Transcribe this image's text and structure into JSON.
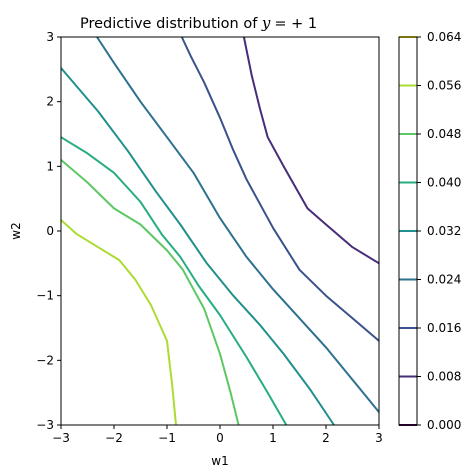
{
  "chart_data": {
    "type": "contour",
    "title": {
      "text": "Predictive distribution of",
      "math_var": "y",
      "math_rest": "= +1"
    },
    "xlabel": "w1",
    "ylabel": "w2",
    "xlim": [
      -3,
      3
    ],
    "ylim": [
      -3,
      3
    ],
    "xticks": [
      -3,
      -2,
      -1,
      0,
      1,
      2,
      3
    ],
    "yticks": [
      -3,
      -2,
      -1,
      0,
      1,
      2,
      3
    ],
    "xtick_labels": [
      "−3",
      "−2",
      "−1",
      "0",
      "1",
      "2",
      "3"
    ],
    "ytick_labels": [
      "−3",
      "−2",
      "−1",
      "0",
      "1",
      "2",
      "3"
    ],
    "grid": false,
    "colorbar": {
      "min": 0.0,
      "max": 0.064,
      "ticks": [
        0.0,
        0.008,
        0.016,
        0.024,
        0.032,
        0.04,
        0.048,
        0.056,
        0.064
      ],
      "tick_labels": [
        "0.000",
        "0.008",
        "0.016",
        "0.024",
        "0.032",
        "0.040",
        "0.048",
        "0.056",
        "0.064"
      ],
      "colors": [
        "#440154",
        "#46327e",
        "#365c8d",
        "#277f8e",
        "#1fa187",
        "#4ac16d",
        "#a0da39",
        "#fde725"
      ],
      "level_colors": [
        "#440154",
        "#472c7a",
        "#3b518b",
        "#2c718e",
        "#21908d",
        "#27ad81",
        "#5cc863",
        "#aadc32",
        "#fde725"
      ]
    },
    "contours": [
      {
        "level": 0.016,
        "color": "#472c7a",
        "points": [
          [
            3.0,
            -0.5
          ],
          [
            2.5,
            -0.25
          ],
          [
            2.0,
            0.1
          ],
          [
            1.65,
            0.35
          ],
          [
            1.2,
            1.0
          ],
          [
            0.9,
            1.45
          ],
          [
            0.75,
            1.9
          ],
          [
            0.6,
            2.4
          ],
          [
            0.45,
            3.0
          ]
        ]
      },
      {
        "level": 0.024,
        "color": "#3b518b",
        "points": [
          [
            3.0,
            -1.7
          ],
          [
            2.5,
            -1.35
          ],
          [
            2.0,
            -1.0
          ],
          [
            1.5,
            -0.6
          ],
          [
            1.0,
            0.05
          ],
          [
            0.5,
            0.8
          ],
          [
            0.25,
            1.25
          ],
          [
            0.0,
            1.75
          ],
          [
            -0.3,
            2.3
          ],
          [
            -0.55,
            2.7
          ],
          [
            -0.72,
            3.0
          ]
        ]
      },
      {
        "level": 0.032,
        "color": "#2c718e",
        "points": [
          [
            3.0,
            -2.8
          ],
          [
            2.5,
            -2.3
          ],
          [
            2.0,
            -1.8
          ],
          [
            1.5,
            -1.35
          ],
          [
            1.0,
            -0.9
          ],
          [
            0.5,
            -0.4
          ],
          [
            0.0,
            0.2
          ],
          [
            -0.5,
            0.9
          ],
          [
            -1.0,
            1.45
          ],
          [
            -1.5,
            2.0
          ],
          [
            -2.0,
            2.6
          ],
          [
            -2.32,
            3.0
          ]
        ]
      },
      {
        "level": 0.04,
        "color": "#21908d",
        "points": [
          [
            2.15,
            -3.0
          ],
          [
            1.7,
            -2.45
          ],
          [
            1.2,
            -1.9
          ],
          [
            0.75,
            -1.45
          ],
          [
            0.25,
            -1.0
          ],
          [
            -0.25,
            -0.5
          ],
          [
            -0.75,
            0.1
          ],
          [
            -1.2,
            0.6
          ],
          [
            -1.75,
            1.25
          ],
          [
            -2.3,
            1.85
          ],
          [
            -3.0,
            2.52
          ]
        ]
      },
      {
        "level": 0.048,
        "color": "#27ad81",
        "points": [
          [
            1.25,
            -3.0
          ],
          [
            0.9,
            -2.5
          ],
          [
            0.5,
            -1.95
          ],
          [
            0.0,
            -1.3
          ],
          [
            -0.4,
            -0.85
          ],
          [
            -0.75,
            -0.4
          ],
          [
            -1.1,
            -0.05
          ],
          [
            -1.5,
            0.45
          ],
          [
            -2.0,
            0.9
          ],
          [
            -2.5,
            1.2
          ],
          [
            -3.0,
            1.45
          ]
        ]
      },
      {
        "level": 0.056,
        "color": "#5cc863",
        "points": [
          [
            0.35,
            -3.0
          ],
          [
            0.2,
            -2.5
          ],
          [
            0.0,
            -1.9
          ],
          [
            -0.3,
            -1.2
          ],
          [
            -0.7,
            -0.6
          ],
          [
            -1.0,
            -0.3
          ],
          [
            -1.5,
            0.1
          ],
          [
            -2.0,
            0.35
          ],
          [
            -2.5,
            0.75
          ],
          [
            -3.0,
            1.1
          ]
        ]
      },
      {
        "level": 0.064,
        "color": "#aadc32",
        "points": [
          [
            -0.83,
            -3.0
          ],
          [
            -0.9,
            -2.4
          ],
          [
            -1.0,
            -1.7
          ],
          [
            -1.3,
            -1.15
          ],
          [
            -1.6,
            -0.75
          ],
          [
            -1.9,
            -0.45
          ],
          [
            -2.3,
            -0.25
          ],
          [
            -2.7,
            -0.05
          ],
          [
            -3.0,
            0.17
          ]
        ]
      }
    ]
  }
}
